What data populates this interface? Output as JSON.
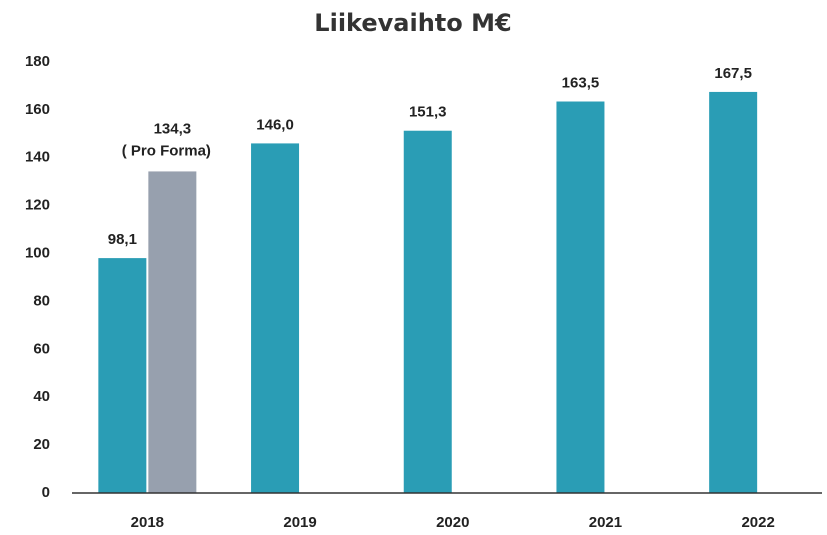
{
  "chart_data": {
    "type": "bar",
    "title": "Liikevaihto M€",
    "categories": [
      "2018",
      "2019",
      "2020",
      "2021",
      "2022"
    ],
    "series": [
      {
        "color": "#2a9db5",
        "values": [
          98.1,
          146.0,
          151.3,
          163.5,
          167.5
        ],
        "value_labels": [
          "98,1",
          "146,0",
          "151,3",
          "163,5",
          "167,5"
        ]
      },
      {
        "name": "( Pro Forma)",
        "color": "#97a0ae",
        "values": [
          134.3,
          null,
          null,
          null,
          null
        ],
        "value_labels": [
          "134,3",
          null,
          null,
          null,
          null
        ]
      }
    ],
    "ylim": [
      0,
      180
    ],
    "yticks": [
      0,
      20,
      40,
      60,
      80,
      100,
      120,
      140,
      160,
      180
    ],
    "grid": false
  }
}
